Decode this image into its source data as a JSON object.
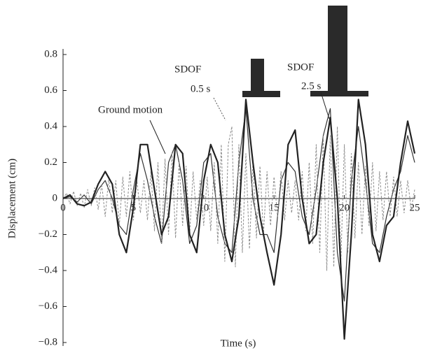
{
  "chart_data": {
    "type": "line",
    "xlabel": "Time (s)",
    "ylabel": "Displacement (cm)",
    "xlim": [
      0,
      25
    ],
    "ylim": [
      -0.8,
      0.8
    ],
    "xticks": [
      0,
      5,
      10,
      15,
      20,
      25
    ],
    "yticks": [
      {
        "value": -0.8,
        "label": "−0.8"
      },
      {
        "value": -0.6,
        "label": "−0.6"
      },
      {
        "value": -0.4,
        "label": "−0.4"
      },
      {
        "value": -0.2,
        "label": "−0.2"
      },
      0,
      0.2,
      0.4,
      0.6,
      0.8
    ],
    "x": [
      0,
      0.5,
      1,
      1.5,
      2,
      2.5,
      3,
      3.5,
      4,
      4.5,
      5,
      5.5,
      6,
      6.5,
      7,
      7.5,
      8,
      8.5,
      9,
      9.5,
      10,
      10.5,
      11,
      11.5,
      12,
      12.5,
      13,
      13.5,
      14,
      14.5,
      15,
      15.5,
      16,
      16.5,
      17,
      17.5,
      18,
      18.5,
      19,
      19.5,
      20,
      20.5,
      21,
      21.5,
      22,
      22.5,
      23,
      23.5,
      24,
      24.5,
      25
    ],
    "series": [
      {
        "name": [
          "Ground motion"
        ],
        "color": "#333333",
        "width": 1.2,
        "values": [
          0,
          0.01,
          -0.02,
          0.02,
          -0.03,
          0.05,
          0.1,
          0,
          -0.15,
          -0.2,
          0.05,
          0.25,
          0.1,
          -0.1,
          -0.25,
          0.2,
          0.3,
          0.1,
          -0.25,
          -0.15,
          0.2,
          0.25,
          -0.1,
          -0.25,
          -0.3,
          0.2,
          0.5,
          0,
          -0.2,
          -0.2,
          -0.3,
          0.1,
          0.2,
          0.15,
          -0.1,
          -0.2,
          0.05,
          0.35,
          0.5,
          -0.3,
          -0.57,
          0.1,
          0.4,
          0.1,
          -0.25,
          -0.3,
          -0.1,
          0.05,
          0.15,
          0.35,
          0.2
        ]
      },
      {
        "name": [
          "SDOF",
          "0.5 s"
        ],
        "color": "#8c8c8c",
        "width": 1,
        "dashed": true,
        "x": [
          0,
          0.25,
          0.5,
          0.75,
          1,
          1.25,
          1.5,
          1.75,
          2,
          2.25,
          2.5,
          2.75,
          3,
          3.25,
          3.5,
          3.75,
          4,
          4.25,
          4.5,
          4.75,
          5,
          5.25,
          5.5,
          5.75,
          6,
          6.25,
          6.5,
          6.75,
          7,
          7.25,
          7.5,
          7.75,
          8,
          8.25,
          8.5,
          8.75,
          9,
          9.25,
          9.5,
          9.75,
          10,
          10.25,
          10.5,
          10.75,
          11,
          11.25,
          11.5,
          11.75,
          12,
          12.25,
          12.5,
          12.75,
          13,
          13.25,
          13.5,
          13.75,
          14,
          14.25,
          14.5,
          14.75,
          15,
          15.25,
          15.5,
          15.75,
          16,
          16.25,
          16.5,
          16.75,
          17,
          17.25,
          17.5,
          17.75,
          18,
          18.25,
          18.5,
          18.75,
          19,
          19.25,
          19.5,
          19.75,
          20,
          20.25,
          20.5,
          20.75,
          21,
          21.25,
          21.5,
          21.75,
          22,
          22.25,
          22.5,
          22.75,
          23,
          23.25,
          23.5,
          23.75,
          24,
          24.25,
          24.5,
          24.75,
          25
        ],
        "values": [
          0,
          0.03,
          -0.03,
          0.04,
          -0.04,
          0.03,
          -0.05,
          0.05,
          -0.04,
          0.06,
          -0.06,
          0.08,
          -0.1,
          0.12,
          -0.08,
          0.1,
          -0.15,
          0.12,
          -0.1,
          0.15,
          -0.12,
          0.1,
          -0.08,
          0.1,
          -0.12,
          0.15,
          -0.18,
          0.2,
          -0.25,
          0.22,
          -0.2,
          0.25,
          -0.22,
          0.2,
          -0.15,
          0.18,
          -0.2,
          0.15,
          -0.12,
          0.1,
          -0.15,
          0.12,
          -0.18,
          0.2,
          -0.25,
          0.3,
          -0.35,
          0.3,
          0.4,
          -0.38,
          0.3,
          -0.3,
          0.25,
          -0.28,
          0.2,
          -0.22,
          0.18,
          -0.2,
          0.15,
          -0.15,
          0.12,
          -0.1,
          0.15,
          -0.12,
          0.1,
          -0.08,
          0.1,
          -0.12,
          0.15,
          -0.18,
          0.2,
          -0.25,
          0.3,
          -0.3,
          0.35,
          -0.4,
          0.35,
          -0.38,
          0.4,
          -0.35,
          0.3,
          -0.3,
          0.25,
          -0.22,
          0.2,
          -0.2,
          0.18,
          -0.15,
          0.2,
          -0.18,
          0.15,
          -0.12,
          0.15,
          -0.1,
          0.12,
          -0.1,
          0.1,
          -0.08,
          0.1,
          -0.06,
          0.05
        ]
      },
      {
        "name": [
          "SDOF",
          "2.5 s"
        ],
        "color": "#222222",
        "width": 2.2,
        "values": [
          0,
          0.02,
          -0.03,
          -0.04,
          -0.02,
          0.08,
          0.15,
          0.08,
          -0.2,
          -0.3,
          -0.05,
          0.3,
          0.3,
          0.05,
          -0.2,
          -0.1,
          0.3,
          0.25,
          -0.2,
          -0.3,
          0.1,
          0.3,
          0.2,
          -0.2,
          -0.35,
          -0.1,
          0.55,
          0.2,
          -0.1,
          -0.3,
          -0.48,
          -0.2,
          0.3,
          0.38,
          0,
          -0.25,
          -0.2,
          0.2,
          0.45,
          0,
          -0.78,
          -0.2,
          0.55,
          0.3,
          -0.2,
          -0.35,
          -0.15,
          -0.1,
          0.2,
          0.43,
          0.25
        ]
      }
    ]
  }
}
